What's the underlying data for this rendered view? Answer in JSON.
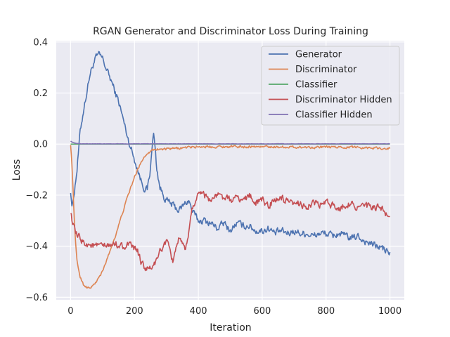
{
  "chart_data": {
    "type": "line",
    "title": "RGAN Generator and Discriminator Loss During Training",
    "xlabel": "Iteration",
    "ylabel": "Loss",
    "xlim": [
      -45,
      1045
    ],
    "ylim": [
      -0.61,
      0.405
    ],
    "xticks": [
      0,
      200,
      400,
      600,
      800,
      1000
    ],
    "xtick_labels": [
      "0",
      "200",
      "400",
      "600",
      "800",
      "1000"
    ],
    "yticks": [
      -0.6,
      -0.4,
      -0.2,
      0.0,
      0.2,
      0.4
    ],
    "ytick_labels": [
      "−0.6",
      "−0.4",
      "−0.2",
      "0.0",
      "0.2",
      "0.4"
    ],
    "grid": true,
    "legend_position": "upper-right",
    "background": "#eaeaf2",
    "series": [
      {
        "name": "Generator",
        "color": "#4c72b0",
        "noise": 0.012,
        "x": [
          0,
          5,
          10,
          20,
          30,
          40,
          50,
          60,
          70,
          80,
          90,
          100,
          110,
          120,
          130,
          140,
          150,
          160,
          170,
          180,
          190,
          200,
          210,
          220,
          230,
          240,
          250,
          255,
          260,
          265,
          270,
          280,
          290,
          300,
          320,
          340,
          360,
          370,
          380,
          400,
          420,
          440,
          460,
          480,
          500,
          520,
          540,
          560,
          580,
          600,
          620,
          640,
          660,
          680,
          700,
          720,
          740,
          760,
          780,
          800,
          820,
          840,
          860,
          880,
          900,
          920,
          940,
          960,
          980,
          1000
        ],
        "y": [
          -0.18,
          -0.25,
          -0.2,
          -0.1,
          0.05,
          0.13,
          0.2,
          0.27,
          0.31,
          0.34,
          0.35,
          0.335,
          0.3,
          0.27,
          0.24,
          0.2,
          0.17,
          0.12,
          0.07,
          0.02,
          -0.02,
          -0.06,
          -0.1,
          -0.14,
          -0.17,
          -0.18,
          -0.1,
          0.0,
          0.04,
          -0.02,
          -0.1,
          -0.17,
          -0.2,
          -0.22,
          -0.24,
          -0.26,
          -0.23,
          -0.22,
          -0.26,
          -0.3,
          -0.3,
          -0.31,
          -0.33,
          -0.31,
          -0.34,
          -0.31,
          -0.32,
          -0.32,
          -0.34,
          -0.34,
          -0.33,
          -0.35,
          -0.34,
          -0.35,
          -0.34,
          -0.35,
          -0.35,
          -0.36,
          -0.35,
          -0.35,
          -0.36,
          -0.35,
          -0.36,
          -0.37,
          -0.36,
          -0.38,
          -0.39,
          -0.4,
          -0.41,
          -0.43
        ]
      },
      {
        "name": "Discriminator",
        "color": "#dd8452",
        "noise": 0.004,
        "x": [
          0,
          5,
          10,
          15,
          20,
          30,
          40,
          50,
          60,
          70,
          80,
          100,
          120,
          140,
          160,
          180,
          200,
          220,
          240,
          260,
          280,
          300,
          350,
          400,
          450,
          500,
          600,
          700,
          800,
          900,
          1000
        ],
        "y": [
          0.0,
          -0.1,
          -0.25,
          -0.38,
          -0.46,
          -0.52,
          -0.55,
          -0.56,
          -0.565,
          -0.555,
          -0.54,
          -0.5,
          -0.43,
          -0.36,
          -0.28,
          -0.2,
          -0.13,
          -0.07,
          -0.035,
          -0.02,
          -0.02,
          -0.02,
          -0.015,
          -0.01,
          -0.01,
          -0.01,
          -0.01,
          -0.012,
          -0.012,
          -0.012,
          -0.018
        ]
      },
      {
        "name": "Classifier",
        "color": "#55a868",
        "noise": 0,
        "x": [
          0,
          1000
        ],
        "y": [
          0.0,
          0.0
        ]
      },
      {
        "name": "Discriminator Hidden",
        "color": "#c44e52",
        "noise": 0.012,
        "x": [
          0,
          5,
          10,
          20,
          30,
          40,
          60,
          80,
          100,
          120,
          140,
          160,
          180,
          200,
          210,
          220,
          230,
          240,
          250,
          260,
          270,
          280,
          290,
          300,
          310,
          320,
          330,
          340,
          350,
          360,
          370,
          380,
          390,
          400,
          410,
          420,
          440,
          460,
          480,
          500,
          520,
          540,
          560,
          580,
          600,
          620,
          640,
          660,
          680,
          700,
          720,
          740,
          760,
          780,
          800,
          820,
          840,
          860,
          880,
          900,
          920,
          940,
          960,
          980,
          990,
          1000
        ],
        "y": [
          -0.26,
          -0.3,
          -0.33,
          -0.36,
          -0.37,
          -0.385,
          -0.395,
          -0.4,
          -0.4,
          -0.4,
          -0.39,
          -0.4,
          -0.395,
          -0.41,
          -0.42,
          -0.46,
          -0.48,
          -0.49,
          -0.49,
          -0.47,
          -0.46,
          -0.42,
          -0.4,
          -0.38,
          -0.42,
          -0.46,
          -0.4,
          -0.37,
          -0.4,
          -0.42,
          -0.34,
          -0.26,
          -0.22,
          -0.2,
          -0.18,
          -0.2,
          -0.22,
          -0.2,
          -0.21,
          -0.22,
          -0.21,
          -0.22,
          -0.2,
          -0.23,
          -0.22,
          -0.24,
          -0.22,
          -0.21,
          -0.23,
          -0.24,
          -0.23,
          -0.25,
          -0.23,
          -0.24,
          -0.23,
          -0.24,
          -0.25,
          -0.24,
          -0.23,
          -0.25,
          -0.24,
          -0.25,
          -0.25,
          -0.26,
          -0.28,
          -0.27
        ]
      },
      {
        "name": "Classifier Hidden",
        "color": "#8172b3",
        "noise": 0.0005,
        "x": [
          0,
          5,
          10,
          15,
          20,
          30,
          50,
          100,
          200,
          300,
          400,
          600,
          800,
          1000
        ],
        "y": [
          0.012,
          0.008,
          0.005,
          0.003,
          0.002,
          0.001,
          0.001,
          0.001,
          0.001,
          0.001,
          0.001,
          0.001,
          0.001,
          0.001
        ]
      }
    ]
  }
}
